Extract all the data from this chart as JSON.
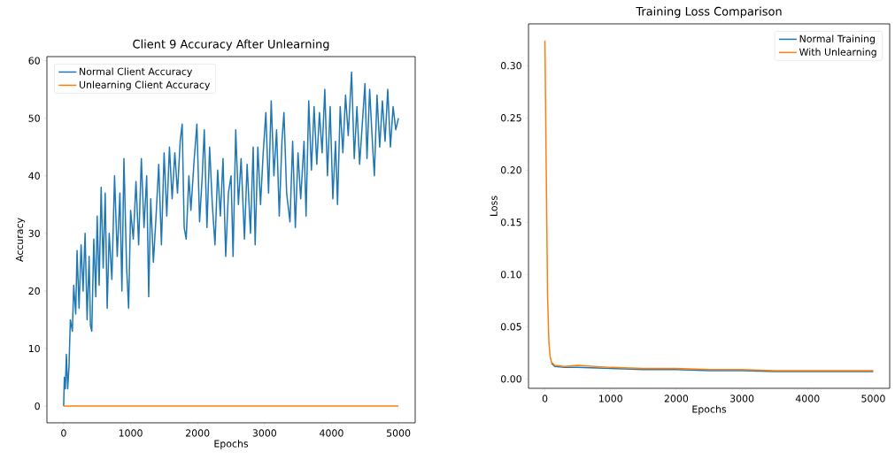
{
  "chart_data": [
    {
      "type": "line",
      "title": "Client 9 Accuracy After Unlearning",
      "xlabel": "Epochs",
      "ylabel": "Accuracy",
      "xlim": [
        -250,
        5250
      ],
      "ylim": [
        -2.9,
        60.7
      ],
      "xticks": [
        0,
        1000,
        2000,
        3000,
        4000,
        5000
      ],
      "yticks": [
        0,
        10,
        20,
        30,
        40,
        50,
        60
      ],
      "legend": "top left",
      "series": [
        {
          "name": "Normal Client Accuracy",
          "color": "#1f77b4",
          "x": [
            0,
            10,
            25,
            40,
            60,
            80,
            100,
            130,
            150,
            180,
            200,
            230,
            260,
            290,
            320,
            350,
            380,
            400,
            420,
            450,
            480,
            500,
            530,
            560,
            590,
            620,
            650,
            680,
            720,
            760,
            800,
            840,
            870,
            900,
            940,
            970,
            1000,
            1040,
            1080,
            1120,
            1160,
            1200,
            1240,
            1270,
            1300,
            1340,
            1380,
            1420,
            1460,
            1500,
            1540,
            1580,
            1620,
            1660,
            1700,
            1740,
            1770,
            1800,
            1830,
            1870,
            1900,
            1950,
            1990,
            2030,
            2070,
            2100,
            2140,
            2180,
            2220,
            2260,
            2300,
            2340,
            2380,
            2420,
            2460,
            2500,
            2530,
            2570,
            2610,
            2650,
            2700,
            2740,
            2790,
            2830,
            2860,
            2900,
            2940,
            2980,
            3020,
            3060,
            3100,
            3140,
            3180,
            3220,
            3260,
            3290,
            3330,
            3380,
            3420,
            3460,
            3500,
            3540,
            3590,
            3620,
            3660,
            3700,
            3740,
            3780,
            3820,
            3860,
            3900,
            3940,
            3980,
            4020,
            4060,
            4090,
            4130,
            4170,
            4210,
            4250,
            4300,
            4340,
            4380,
            4420,
            4460,
            4500,
            4530,
            4570,
            4610,
            4640,
            4680,
            4720,
            4760,
            4800,
            4840,
            4880,
            4920,
            4960,
            5000
          ],
          "values": [
            0,
            5,
            3,
            9,
            3,
            7,
            15,
            13,
            21,
            16,
            27,
            17,
            28,
            20,
            30,
            15,
            26,
            14,
            13,
            29,
            19,
            33,
            21,
            38,
            24,
            37,
            17,
            30,
            22,
            40,
            26,
            37,
            20,
            43,
            24,
            17,
            34,
            29,
            39,
            28,
            43,
            31,
            40,
            19,
            36,
            25,
            33,
            42,
            28,
            44,
            33,
            45,
            36,
            44,
            37,
            46,
            49,
            31,
            29,
            40,
            34,
            43,
            49,
            32,
            40,
            48,
            31,
            45,
            35,
            28,
            41,
            33,
            43,
            26,
            37,
            40,
            26,
            48,
            35,
            43,
            29,
            42,
            30,
            45,
            28,
            45,
            35,
            44,
            51,
            37,
            53,
            40,
            48,
            33,
            46,
            51,
            37,
            32,
            46,
            31,
            44,
            36,
            46,
            33,
            53,
            41,
            52,
            42,
            51,
            44,
            55,
            40,
            52,
            36,
            46,
            35,
            52,
            44,
            54,
            47,
            58,
            43,
            52,
            42,
            49,
            56,
            43,
            55,
            46,
            40,
            54,
            45,
            53,
            46,
            55,
            45,
            52,
            48,
            50
          ]
        },
        {
          "name": "Unlearning Client Accuracy",
          "color": "#ff7f0e",
          "x": [
            0,
            5000
          ],
          "values": [
            0,
            0
          ]
        }
      ]
    },
    {
      "type": "line",
      "title": "Training Loss Comparison",
      "xlabel": "Epochs",
      "ylabel": "Loss",
      "xlim": [
        -250,
        5250
      ],
      "ylim": [
        -0.009,
        0.34
      ],
      "xticks": [
        0,
        1000,
        2000,
        3000,
        4000,
        5000
      ],
      "yticks": [
        {
          "value": 0,
          "label": "0.00"
        },
        {
          "value": 0.05,
          "label": "0.05"
        },
        {
          "value": 0.1,
          "label": "0.10"
        },
        {
          "value": 0.15,
          "label": "0.15"
        },
        {
          "value": 0.2,
          "label": "0.20"
        },
        {
          "value": 0.25,
          "label": "0.25"
        },
        {
          "value": 0.3,
          "label": "0.30"
        }
      ],
      "legend": "top right",
      "series": [
        {
          "name": "Normal Training",
          "color": "#1f77b4",
          "x": [
            100,
            150,
            300,
            500,
            1000,
            1500,
            2000,
            2500,
            3000,
            3500,
            4000,
            4500,
            5000
          ],
          "values": [
            0.015,
            0.012,
            0.011,
            0.011,
            0.01,
            0.009,
            0.009,
            0.008,
            0.008,
            0.007,
            0.007,
            0.007,
            0.007
          ]
        },
        {
          "name": "With Unlearning",
          "color": "#ff7f0e",
          "x": [
            0,
            20,
            40,
            60,
            80,
            100,
            150,
            300,
            500,
            1000,
            1500,
            2000,
            2500,
            3000,
            3500,
            4000,
            4500,
            5000
          ],
          "values": [
            0.324,
            0.2,
            0.08,
            0.036,
            0.021,
            0.016,
            0.013,
            0.012,
            0.013,
            0.011,
            0.01,
            0.01,
            0.009,
            0.009,
            0.008,
            0.008,
            0.008,
            0.008
          ]
        }
      ]
    }
  ]
}
